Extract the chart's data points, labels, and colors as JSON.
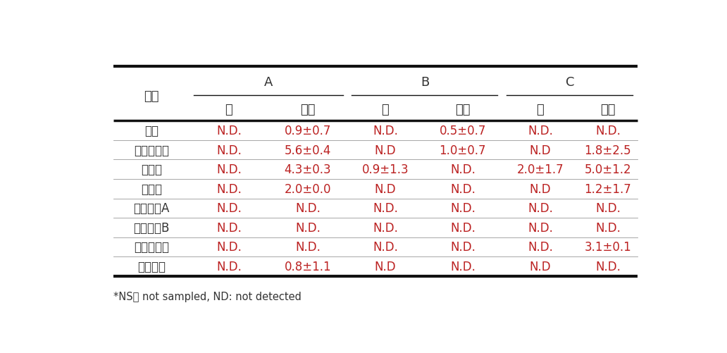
{
  "footnote": "*NS： not sampled, ND: not detected",
  "header_group_labels": [
    "A",
    "B",
    "C"
  ],
  "header_season": [
    "쇼",
    "여름",
    "쇼",
    "여름",
    "쇼",
    "여름"
  ],
  "header_sample": "시료",
  "rows": [
    [
      "종자",
      "N.D.",
      "0.9±0.7",
      "N.D.",
      "0.5±0.7",
      "N.D.",
      "N.D."
    ],
    [
      "발아소쿠리",
      "N.D.",
      "5.6±0.4",
      "N.D",
      "1.0±0.7",
      "N.D",
      "1.8±2.5"
    ],
    [
      "트레이",
      "N.D.",
      "4.3±0.3",
      "0.9±1.3",
      "N.D.",
      "2.0±1.7",
      "5.0±1.2"
    ],
    [
      "부직포",
      "N.D.",
      "2.0±0.0",
      "N.D",
      "N.D.",
      "N.D",
      "1.2±1.7"
    ],
    [
      "양액원액A",
      "N.D.",
      "N.D.",
      "N.D.",
      "N.D.",
      "N.D.",
      "N.D."
    ],
    [
      "양액원액B",
      "N.D.",
      "N.D.",
      "N.D.",
      "N.D.",
      "N.D.",
      "N.D."
    ],
    [
      "양액희석액",
      "N.D.",
      "N.D.",
      "N.D.",
      "N.D.",
      "N.D.",
      "3.1±0.1"
    ],
    [
      "양액탱크",
      "N.D.",
      "0.8±1.1",
      "N.D",
      "N.D.",
      "N.D",
      "N.D."
    ]
  ],
  "col_label_color": "#333333",
  "col_value_color": "#bb2222",
  "background_color": "#ffffff",
  "line_color": "#111111",
  "figsize": [
    10.32,
    5.02
  ],
  "dpi": 100,
  "font_size_header": 13,
  "font_size_data": 12,
  "font_size_footnote": 10.5
}
